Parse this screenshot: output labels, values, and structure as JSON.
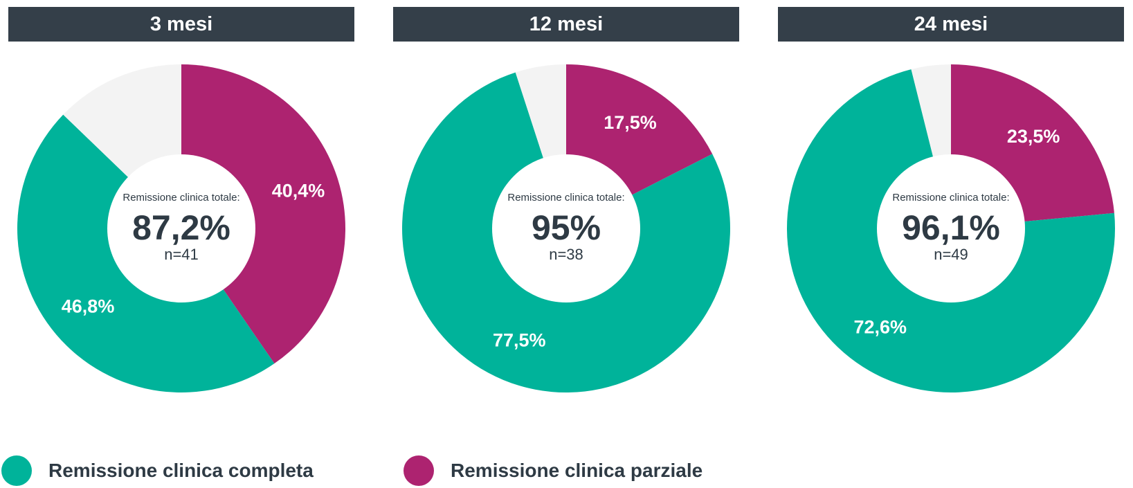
{
  "colors": {
    "completa": "#00b39a",
    "parziale": "#ad2370",
    "remainder": "#f3f3f3",
    "header_bg": "#343f49",
    "text_dark": "#2e3a44"
  },
  "legend": [
    {
      "label": "Remissione clinica completa",
      "color": "#00b39a"
    },
    {
      "label": "Remissione clinica parziale",
      "color": "#ad2370"
    }
  ],
  "chart_data": [
    {
      "type": "pie",
      "title": "3 mesi",
      "center_caption": "Remissione clinica totale:",
      "center_value": "87,2%",
      "center_n": "n=41",
      "slices": [
        {
          "name": "Remissione clinica parziale",
          "value": 40.4,
          "label": "40,4%",
          "color": "#ad2370"
        },
        {
          "name": "Remissione clinica completa",
          "value": 46.8,
          "label": "46,8%",
          "color": "#00b39a"
        },
        {
          "name": "",
          "value": 12.8,
          "label": "",
          "color": "#f3f3f3"
        }
      ]
    },
    {
      "type": "pie",
      "title": "12 mesi",
      "center_caption": "Remissione clinica totale:",
      "center_value": "95%",
      "center_n": "n=38",
      "slices": [
        {
          "name": "Remissione clinica parziale",
          "value": 17.5,
          "label": "17,5%",
          "color": "#ad2370"
        },
        {
          "name": "Remissione clinica completa",
          "value": 77.5,
          "label": "77,5%",
          "color": "#00b39a"
        },
        {
          "name": "",
          "value": 5.0,
          "label": "",
          "color": "#f3f3f3"
        }
      ]
    },
    {
      "type": "pie",
      "title": "24 mesi",
      "center_caption": "Remissione clinica totale:",
      "center_value": "96,1%",
      "center_n": "n=49",
      "slices": [
        {
          "name": "Remissione clinica parziale",
          "value": 23.5,
          "label": "23,5%",
          "color": "#ad2370"
        },
        {
          "name": "Remissione clinica completa",
          "value": 72.6,
          "label": "72,6%",
          "color": "#00b39a"
        },
        {
          "name": "",
          "value": 3.9,
          "label": "",
          "color": "#f3f3f3"
        }
      ]
    }
  ]
}
